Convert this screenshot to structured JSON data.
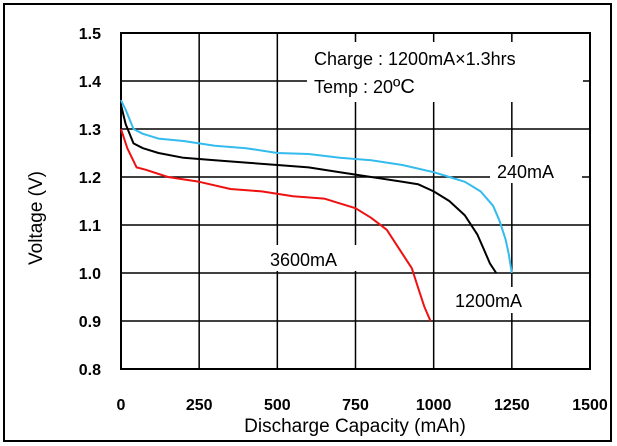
{
  "chart_data": {
    "type": "line",
    "xlabel": "Discharge Capacity (mAh)",
    "ylabel": "Voltage (V)",
    "xlim": [
      0,
      1500
    ],
    "ylim": [
      0.8,
      1.5
    ],
    "xticks": [
      "0",
      "250",
      "500",
      "750",
      "1000",
      "1250",
      "1500"
    ],
    "yticks": [
      "0.8",
      "0.9",
      "1.0",
      "1.1",
      "1.2",
      "1.3",
      "1.4",
      "1.5"
    ],
    "grid": true,
    "annotations": {
      "charge": "Charge : 1200mA×1.3hrs",
      "temp": "Temp : 20",
      "temp_unit": "ºC"
    },
    "series": [
      {
        "name": "240mA",
        "color": "#33bbee",
        "x": [
          0,
          15,
          40,
          70,
          120,
          200,
          300,
          400,
          500,
          600,
          700,
          800,
          900,
          1000,
          1050,
          1100,
          1150,
          1190,
          1210,
          1230,
          1240,
          1250
        ],
        "y": [
          1.36,
          1.34,
          1.3,
          1.29,
          1.28,
          1.275,
          1.265,
          1.26,
          1.25,
          1.248,
          1.24,
          1.235,
          1.225,
          1.21,
          1.2,
          1.19,
          1.17,
          1.14,
          1.11,
          1.07,
          1.04,
          1.0
        ]
      },
      {
        "name": "1200mA",
        "color": "#000000",
        "x": [
          0,
          15,
          40,
          70,
          120,
          200,
          300,
          400,
          500,
          600,
          700,
          800,
          900,
          950,
          1000,
          1050,
          1100,
          1140,
          1160,
          1180,
          1200
        ],
        "y": [
          1.35,
          1.31,
          1.27,
          1.26,
          1.25,
          1.24,
          1.235,
          1.23,
          1.225,
          1.22,
          1.21,
          1.2,
          1.19,
          1.185,
          1.17,
          1.15,
          1.12,
          1.08,
          1.05,
          1.02,
          1.0
        ]
      },
      {
        "name": "3600mA",
        "color": "#ee1111",
        "x": [
          0,
          20,
          50,
          80,
          150,
          250,
          350,
          450,
          550,
          650,
          700,
          750,
          800,
          850,
          900,
          930,
          950,
          970,
          990
        ],
        "y": [
          1.3,
          1.26,
          1.22,
          1.215,
          1.2,
          1.19,
          1.175,
          1.17,
          1.16,
          1.155,
          1.145,
          1.135,
          1.115,
          1.09,
          1.04,
          1.01,
          0.97,
          0.93,
          0.9
        ]
      }
    ]
  }
}
